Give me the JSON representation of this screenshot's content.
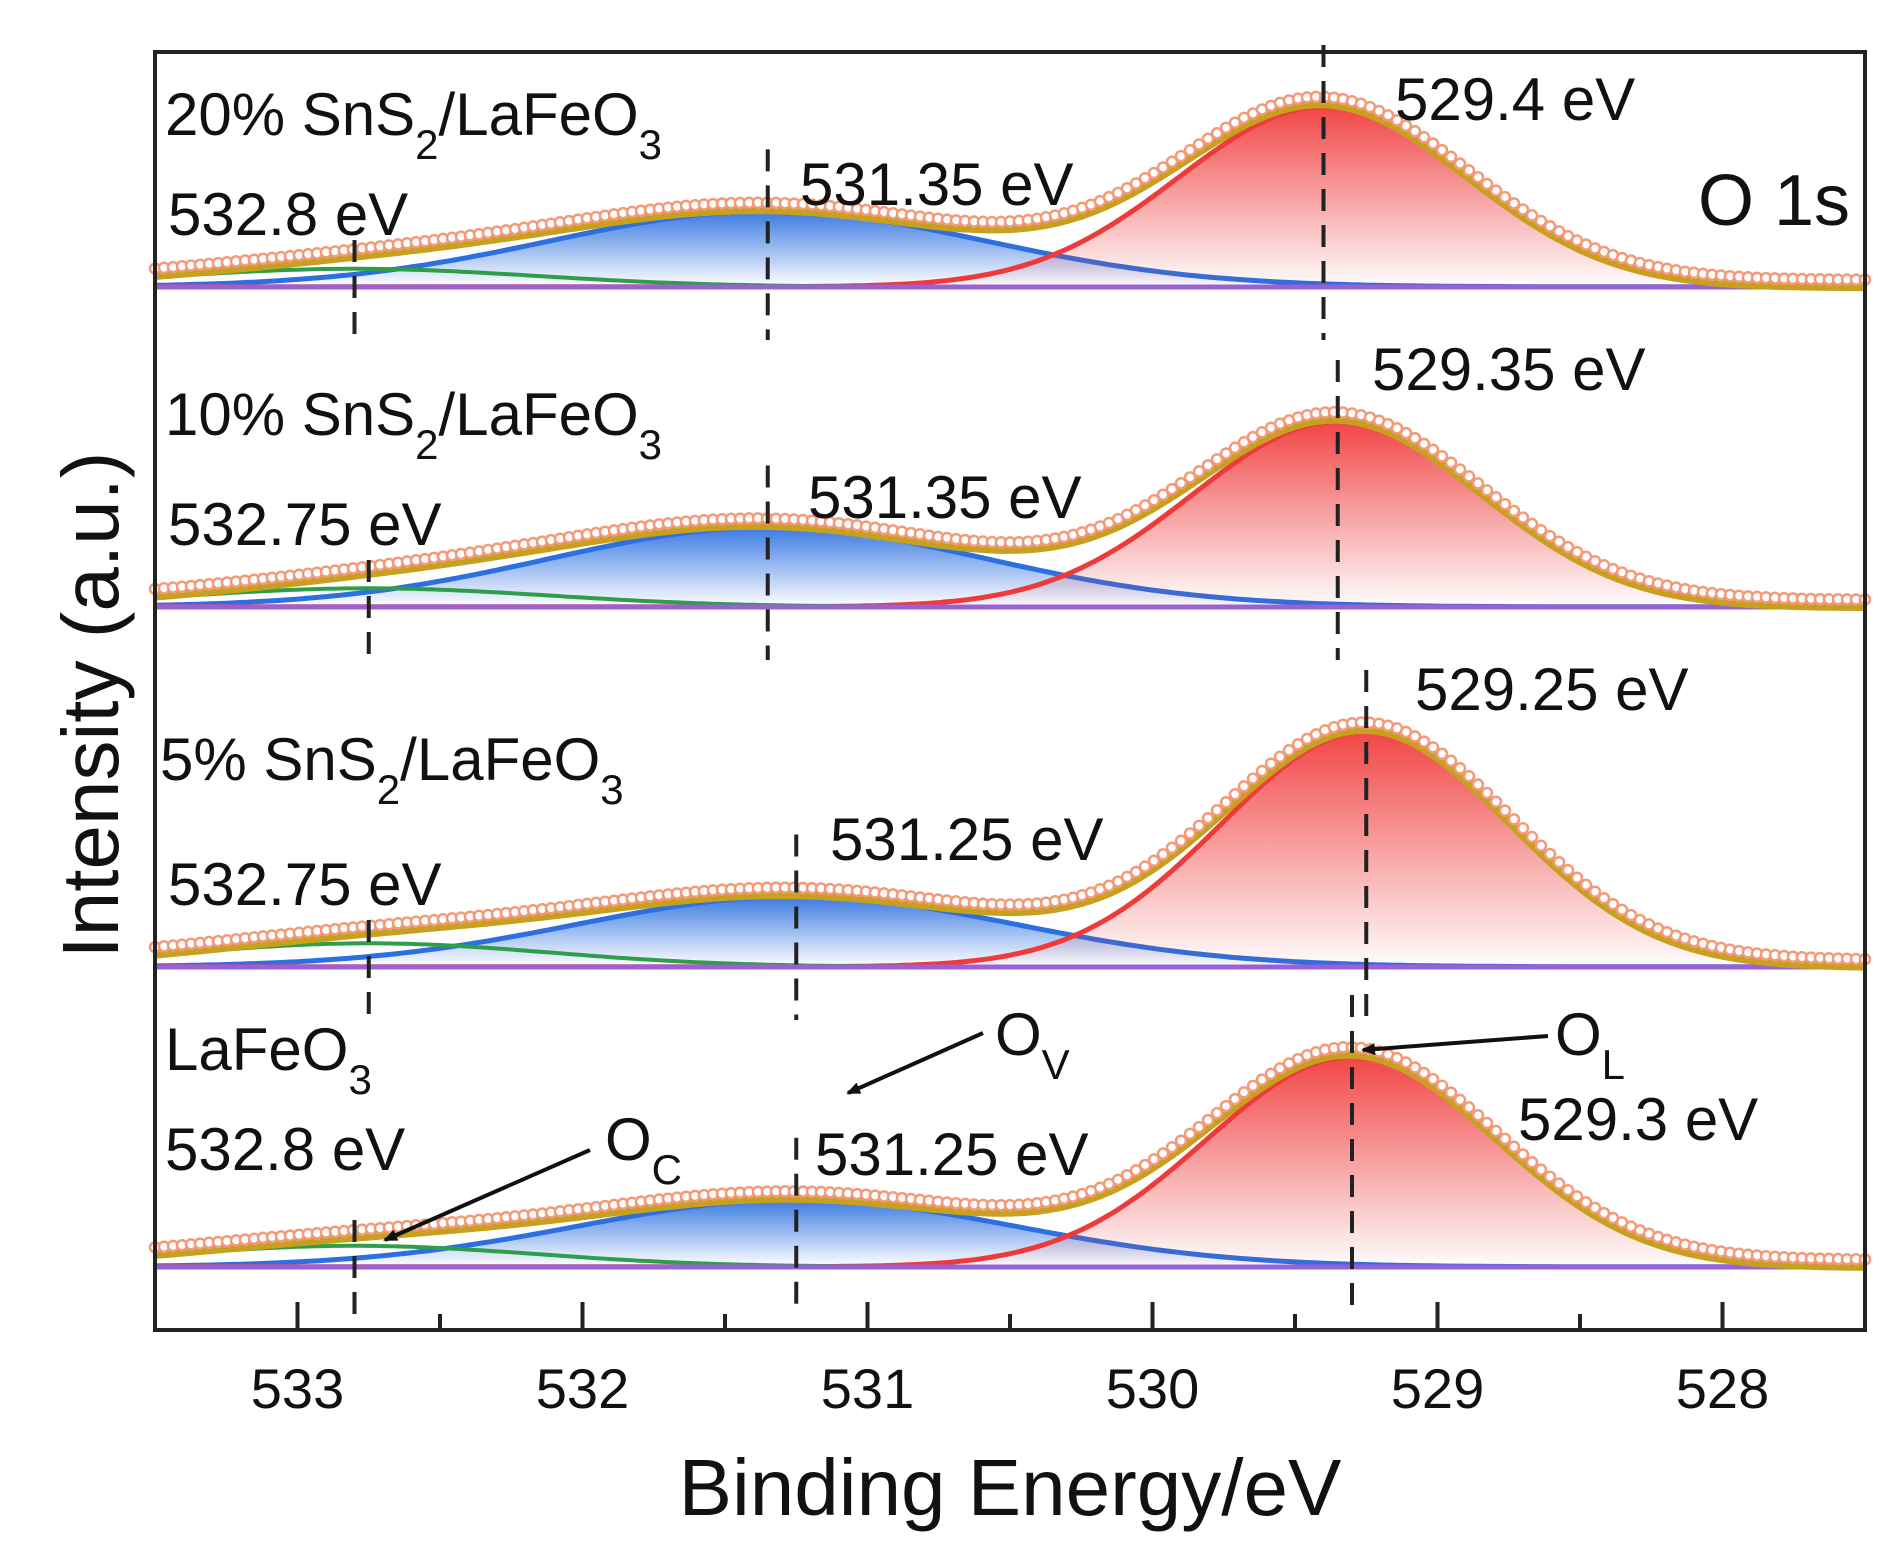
{
  "chart_data": {
    "type": "line",
    "title": "O 1s",
    "xlabel": "Binding Energy/eV",
    "ylabel": "Intensity (a.u.)",
    "xlim": [
      533.5,
      527.5
    ],
    "x_reversed": true,
    "xticks": [
      533,
      532,
      531,
      530,
      529,
      528
    ],
    "xticks_minor": [
      533.5,
      532.5,
      531.5,
      530.5,
      529.5,
      528.5,
      527.5
    ],
    "colors": {
      "data_circles": "#F39A78",
      "envelope": "#C8A020",
      "lattice_peak": "#F03A3A",
      "vacancy_peak": "#2B6FE0",
      "chemisorbed_peak": "#2E9E4A",
      "background": "#9B5FD6",
      "reference_line": "#222222"
    },
    "annotations": {
      "oc": {
        "main": "O",
        "sub": "C"
      },
      "ov": {
        "main": "O",
        "sub": "V"
      },
      "ol": {
        "main": "O",
        "sub": "L"
      }
    },
    "series": [
      {
        "name": "20% SnS2/LaFeO3",
        "label_main": "20% SnS",
        "label_sub1": "2",
        "label_mid": "/LaFeO",
        "label_sub2": "3",
        "peaks": {
          "chemisorbed": {
            "center": 532.8,
            "label": "532.8 eV",
            "height": 0.1,
            "fwhm": 1.5
          },
          "vacancy": {
            "center": 531.35,
            "label": "531.35 eV",
            "height": 0.42,
            "fwhm": 1.8
          },
          "lattice": {
            "center": 529.4,
            "label": "529.4 eV",
            "height": 1.0,
            "fwhm": 1.2
          }
        }
      },
      {
        "name": "10% SnS2/LaFeO3",
        "label_main": "10% SnS",
        "label_sub1": "2",
        "label_mid": "/LaFeO",
        "label_sub2": "3",
        "peaks": {
          "chemisorbed": {
            "center": 532.75,
            "label": "532.75 eV",
            "height": 0.1,
            "fwhm": 1.5
          },
          "vacancy": {
            "center": 531.35,
            "label": "531.35 eV",
            "height": 0.43,
            "fwhm": 1.8
          },
          "lattice": {
            "center": 529.35,
            "label": "529.35 eV",
            "height": 1.0,
            "fwhm": 1.2
          }
        }
      },
      {
        "name": "5% SnS2/LaFeO3",
        "label_main": "5% SnS",
        "label_sub1": "2",
        "label_mid": "/LaFeO",
        "label_sub2": "3",
        "peaks": {
          "chemisorbed": {
            "center": 532.75,
            "label": "532.75 eV",
            "height": 0.1,
            "fwhm": 1.5
          },
          "vacancy": {
            "center": 531.25,
            "label": "531.25 eV",
            "height": 0.3,
            "fwhm": 1.8
          },
          "lattice": {
            "center": 529.25,
            "label": "529.25 eV",
            "height": 1.0,
            "fwhm": 1.2
          }
        }
      },
      {
        "name": "LaFeO3",
        "label_main": "LaFeO",
        "label_sub1": "3",
        "label_mid": "",
        "label_sub2": "",
        "peaks": {
          "chemisorbed": {
            "center": 532.8,
            "label": "532.8 eV",
            "height": 0.1,
            "fwhm": 1.5
          },
          "vacancy": {
            "center": 531.25,
            "label": "531.25 eV",
            "height": 0.32,
            "fwhm": 1.8
          },
          "lattice": {
            "center": 529.3,
            "label": "529.3 eV",
            "height": 1.0,
            "fwhm": 1.2
          }
        }
      }
    ]
  }
}
